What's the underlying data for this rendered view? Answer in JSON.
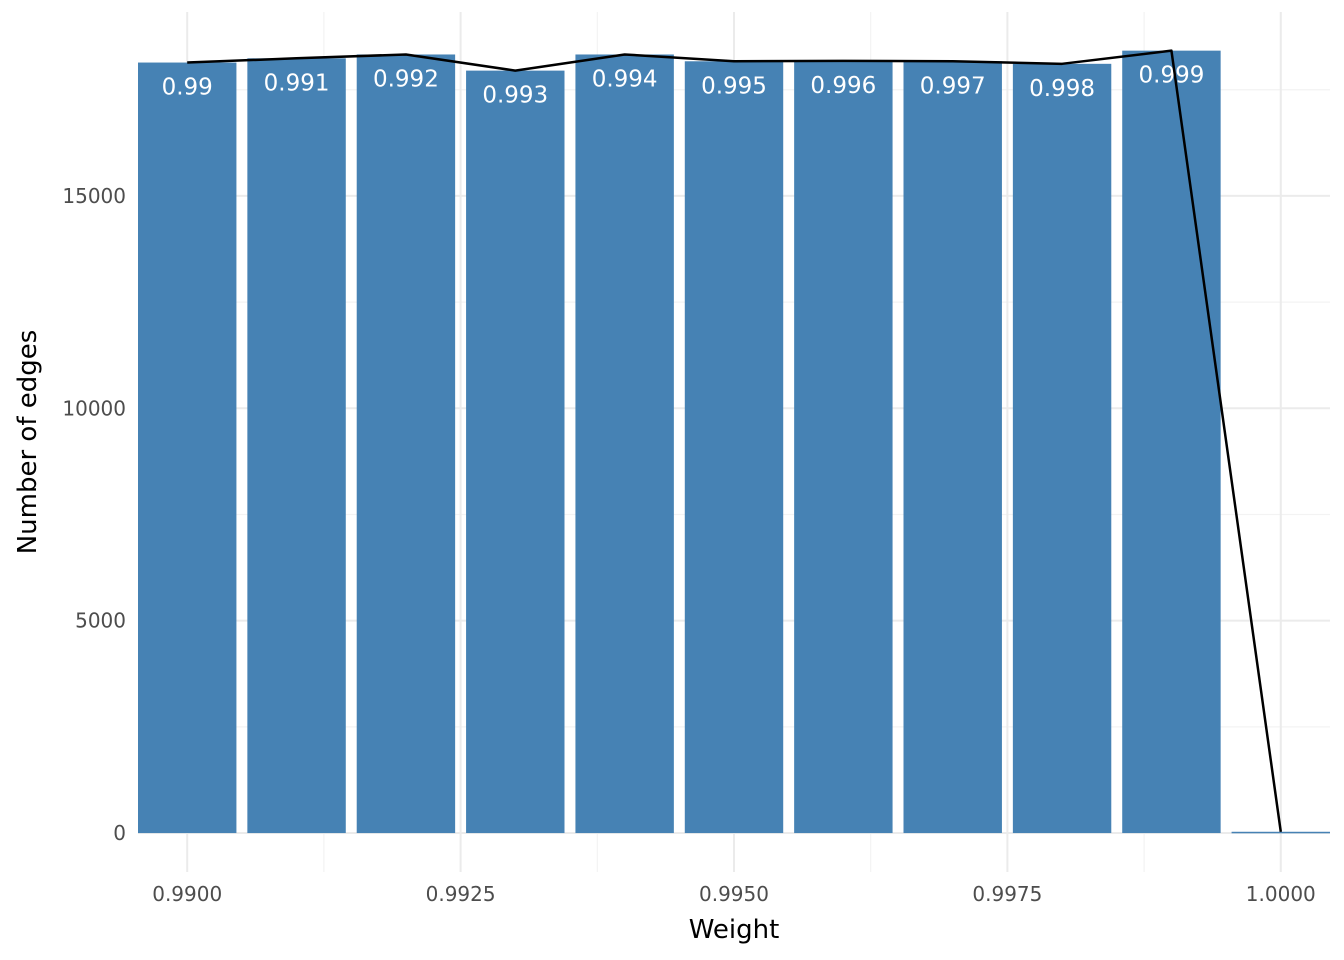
{
  "chart_data": {
    "type": "bar",
    "title": "",
    "xlabel": "Weight",
    "ylabel": "Number of edges",
    "x": [
      0.99,
      0.991,
      0.992,
      0.993,
      0.994,
      0.995,
      0.996,
      0.997,
      0.998,
      0.999,
      1.0
    ],
    "values": [
      18140,
      18240,
      18330,
      17950,
      18330,
      18170,
      18180,
      18170,
      18110,
      18420,
      30
    ],
    "bar_labels": [
      "0.99",
      "0.991",
      "0.992",
      "0.993",
      "0.994",
      "0.995",
      "0.996",
      "0.997",
      "0.998",
      "0.999",
      ""
    ],
    "line_overlay": {
      "color": "#000000",
      "values": [
        18140,
        18240,
        18330,
        17950,
        18330,
        18170,
        18180,
        18170,
        18110,
        18420,
        30
      ]
    },
    "xlim": [
      0.98955,
      1.00045
    ],
    "ylim": [
      -917,
      19330
    ],
    "x_ticks": [
      0.99,
      0.9925,
      0.995,
      0.9975,
      1.0
    ],
    "x_tick_labels": [
      "0.9900",
      "0.9925",
      "0.9950",
      "0.9975",
      "1.0000"
    ],
    "x_minor_ticks": [
      0.99125,
      0.99375,
      0.99625,
      0.99875
    ],
    "y_ticks": [
      0,
      5000,
      10000,
      15000
    ],
    "y_tick_labels": [
      "0",
      "5000",
      "10000",
      "15000"
    ],
    "y_minor_ticks": [
      2500,
      7500,
      12500,
      17500
    ],
    "bar_width": 0.0009,
    "bar_color": "#4682b4",
    "grid": true,
    "legend": "none"
  }
}
